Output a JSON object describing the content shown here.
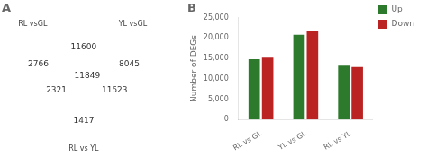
{
  "chart_data": [
    {
      "type": "venn",
      "title": "A",
      "series": [
        {
          "name": "RL vsGL",
          "color": "#eeee99"
        },
        {
          "name": "YL vsGL",
          "color": "#99eeee"
        },
        {
          "name": "RL vs YL",
          "color": "#c0aee0"
        }
      ],
      "values": [
        2766,
        11600,
        8045,
        2321,
        11849,
        11523,
        1417
      ]
    },
    {
      "type": "bar",
      "title": "B",
      "categories": [
        "RL vs GL",
        "YL vs GL",
        "RL vs YL"
      ],
      "series": [
        {
          "name": "Up",
          "color": "#2d7a2d",
          "values": [
            14800,
            20800,
            13200
          ]
        },
        {
          "name": "Down",
          "color": "#bb2222",
          "values": [
            15200,
            21800,
            12900
          ]
        }
      ],
      "ylabel": "Number of DEGs",
      "ylim": [
        0,
        25000
      ],
      "yticks": [
        0,
        5000,
        10000,
        15000,
        20000,
        25000
      ],
      "grid": false,
      "legend": "right"
    }
  ]
}
